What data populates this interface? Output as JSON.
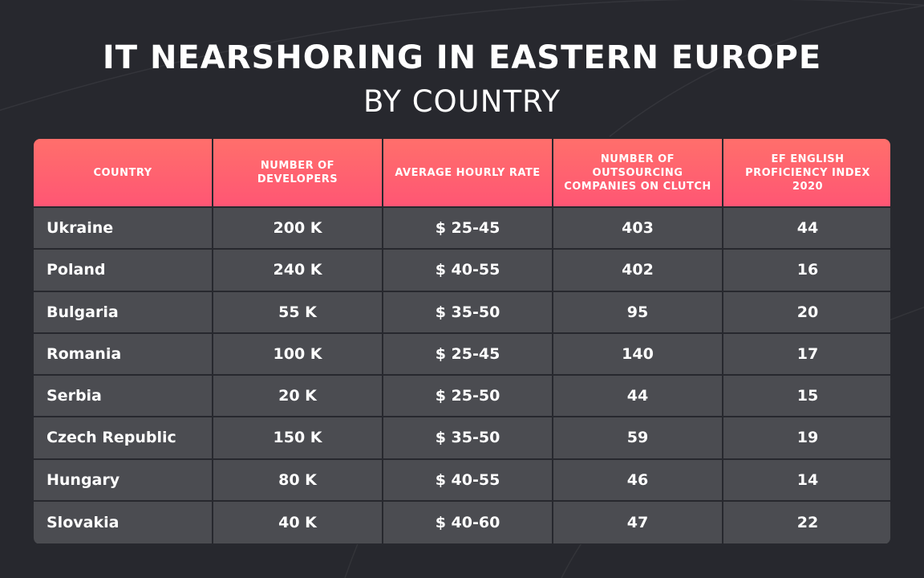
{
  "title": "IT NEARSHORING IN EASTERN EUROPE",
  "subtitle": "BY COUNTRY",
  "colors": {
    "background": "#27282e",
    "header_gradient_start": "#ff6f6b",
    "header_gradient_end": "#ff5674",
    "row": "#4b4c51",
    "text": "#ffffff"
  },
  "chart_data": {
    "type": "table",
    "title": "IT NEARSHORING IN EASTERN EUROPE",
    "subtitle": "BY COUNTRY",
    "columns": [
      "COUNTRY",
      "NUMBER OF DEVELOPERS",
      "AVERAGE HOURLY RATE",
      "NUMBER OF OUTSOURCING COMPANIES ON CLUTCH",
      "EF ENGLISH PROFICIENCY INDEX 2020"
    ],
    "rows": [
      [
        "Ukraine",
        "200 K",
        "$ 25-45",
        "403",
        "44"
      ],
      [
        "Poland",
        "240 K",
        "$ 40-55",
        "402",
        "16"
      ],
      [
        "Bulgaria",
        "55 K",
        "$ 35-50",
        "95",
        "20"
      ],
      [
        "Romania",
        "100 K",
        "$ 25-45",
        "140",
        "17"
      ],
      [
        "Serbia",
        "20 K",
        "$ 25-50",
        "44",
        "15"
      ],
      [
        "Czech Republic",
        "150 K",
        "$ 35-50",
        "59",
        "19"
      ],
      [
        "Hungary",
        "80 K",
        "$ 40-55",
        "46",
        "14"
      ],
      [
        "Slovakia",
        "40 K",
        "$ 40-60",
        "47",
        "22"
      ]
    ]
  }
}
